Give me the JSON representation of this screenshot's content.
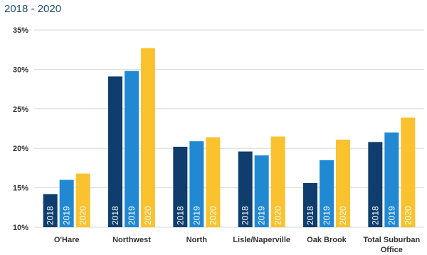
{
  "header": {
    "subtitle": "2018 - 2020"
  },
  "colors": {
    "2018": "#0e3d6e",
    "2019": "#2189d1",
    "2020": "#f9c22e"
  },
  "chart_data": {
    "type": "bar",
    "title": "",
    "subtitle": "2018 - 2020",
    "xlabel": "",
    "ylabel": "",
    "ylim": [
      10,
      35
    ],
    "yticks": [
      "10%",
      "15%",
      "20%",
      "25%",
      "30%",
      "35%"
    ],
    "ytick_values": [
      10,
      15,
      20,
      25,
      30,
      35
    ],
    "grid": true,
    "categories": [
      "O'Hare",
      "Northwest",
      "North",
      "Lisle/Naperville",
      "Oak Brook",
      "Total Suburban Office"
    ],
    "category_lines": [
      [
        "O'Hare"
      ],
      [
        "Northwest"
      ],
      [
        "North"
      ],
      [
        "Lisle/Naperville"
      ],
      [
        "Oak Brook"
      ],
      [
        "Total Suburban",
        "Office"
      ]
    ],
    "series": [
      {
        "name": "2018",
        "values": [
          14.2,
          29.1,
          20.2,
          19.6,
          15.6,
          20.8
        ]
      },
      {
        "name": "2019",
        "values": [
          16.0,
          29.8,
          20.9,
          19.1,
          18.5,
          22.0
        ]
      },
      {
        "name": "2020",
        "values": [
          16.8,
          32.7,
          21.4,
          21.5,
          21.1,
          23.9
        ]
      }
    ]
  }
}
